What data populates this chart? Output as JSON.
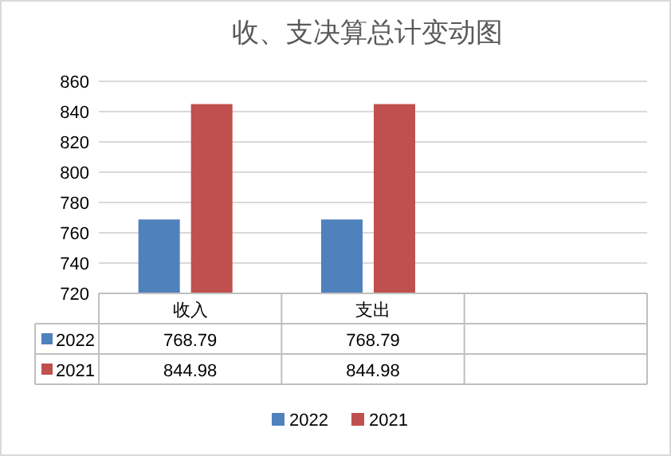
{
  "chart_data": {
    "type": "bar",
    "title": "收、支决算总计变动图",
    "categories": [
      "收入",
      "支出",
      null
    ],
    "series": [
      {
        "name": "2022",
        "color": "#4f81bd",
        "values": [
          768.79,
          768.79,
          null
        ]
      },
      {
        "name": "2021",
        "color": "#c0504d",
        "values": [
          844.98,
          844.98,
          null
        ]
      }
    ],
    "ylim": [
      720,
      860
    ],
    "yticks": [
      720,
      740,
      760,
      780,
      800,
      820,
      840,
      860
    ],
    "grid": "y",
    "legend": "bottom",
    "data_labels": true
  }
}
